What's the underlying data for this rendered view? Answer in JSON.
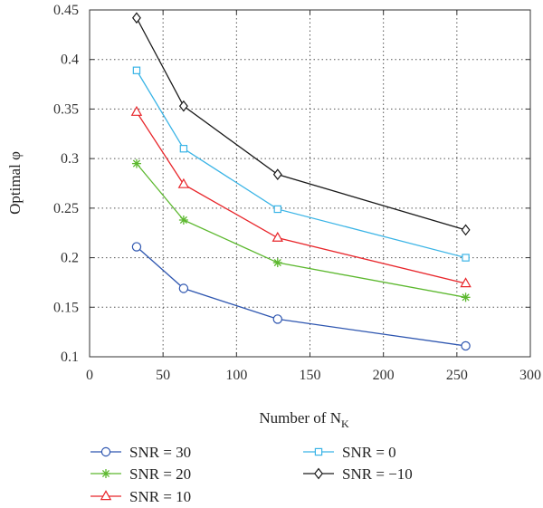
{
  "chart_data": {
    "type": "line",
    "title": "",
    "xlabel": "Number of N",
    "xlabel_sub": "K",
    "ylabel": "Optimal φ",
    "xlim": [
      0,
      300
    ],
    "ylim": [
      0.1,
      0.45
    ],
    "xticks": [
      0,
      50,
      100,
      150,
      200,
      250,
      300
    ],
    "yticks": [
      0.1,
      0.15,
      0.2,
      0.25,
      0.3,
      0.35,
      0.4,
      0.45
    ],
    "grid": true,
    "legend_position": "below plot",
    "x": [
      32,
      64,
      128,
      256
    ],
    "series": [
      {
        "name": "SNR = 30",
        "marker": "circle",
        "color": "#2e56b0",
        "values": [
          0.211,
          0.169,
          0.138,
          0.111
        ]
      },
      {
        "name": "SNR = 20",
        "marker": "asterisk",
        "color": "#5cb82e",
        "values": [
          0.295,
          0.238,
          0.195,
          0.16
        ]
      },
      {
        "name": "SNR = 10",
        "marker": "triangle",
        "color": "#e8262b",
        "values": [
          0.347,
          0.274,
          0.22,
          0.174
        ]
      },
      {
        "name": "SNR = 0",
        "marker": "square",
        "color": "#3ab4e6",
        "values": [
          0.389,
          0.31,
          0.249,
          0.2
        ]
      },
      {
        "name": "SNR = −10",
        "marker": "diamond",
        "color": "#1a1a1a",
        "values": [
          0.442,
          0.353,
          0.284,
          0.228
        ]
      }
    ]
  }
}
